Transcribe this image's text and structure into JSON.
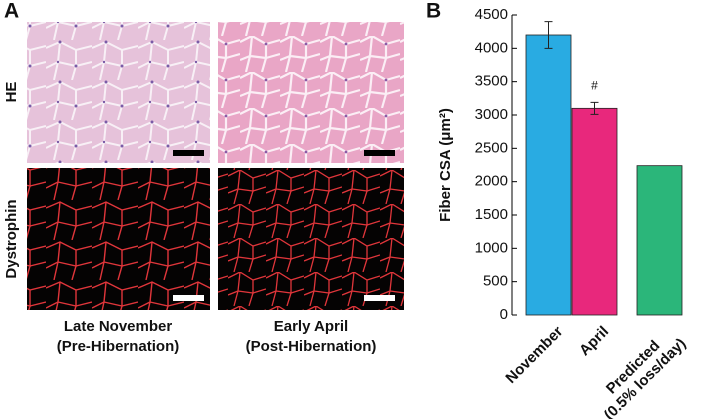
{
  "panel_labels": [
    "A",
    "B"
  ],
  "panel_a": {
    "row_labels": [
      "HE",
      "Dystrophin"
    ],
    "columns": [
      [
        "Late November",
        "(Pre-Hibernation)"
      ],
      [
        "Early April",
        "(Post-Hibernation)"
      ]
    ]
  },
  "chart_data": {
    "type": "bar",
    "ylabel": "Fiber CSA (μm²)",
    "categories": [
      "November",
      "April",
      "Predicted\n(0.5% loss/day)"
    ],
    "values": [
      4200,
      3100,
      2240
    ],
    "errors": [
      200,
      90,
      null
    ],
    "colors": [
      "#29abe2",
      "#e8287c",
      "#2bb67a"
    ],
    "annotation": "#",
    "ylim": [
      0,
      4500
    ],
    "yticks": [
      0,
      500,
      1000,
      1500,
      2000,
      2500,
      3000,
      3500,
      4000,
      4500
    ]
  }
}
